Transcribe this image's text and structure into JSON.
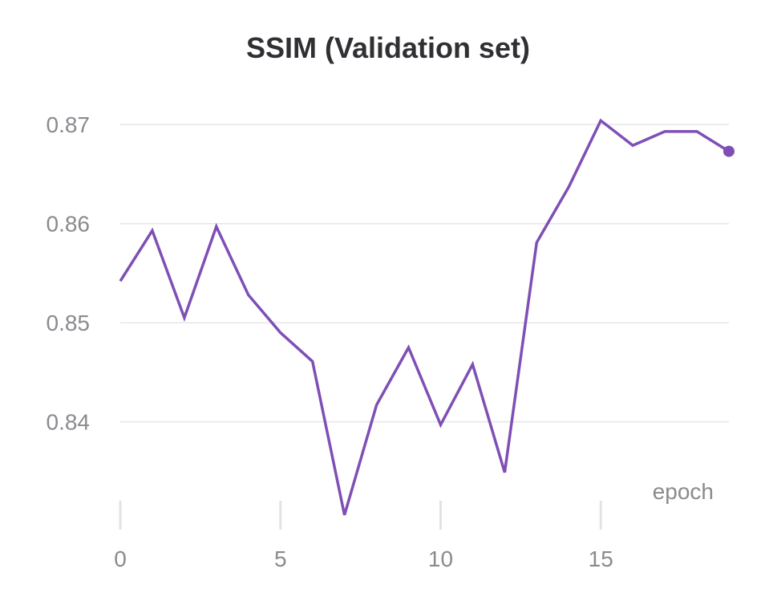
{
  "chart_data": {
    "type": "line",
    "title": "SSIM (Validation set)",
    "xlabel": "epoch",
    "ylabel": "",
    "xlim": [
      0,
      19
    ],
    "ylim": [
      0.8305,
      0.8735
    ],
    "xticks": [
      0,
      5,
      10,
      15
    ],
    "xtick_labels": [
      "0",
      "5",
      "10",
      "15"
    ],
    "yticks": [
      0.84,
      0.85,
      0.86,
      0.87
    ],
    "ytick_labels": [
      "0.84",
      "0.85",
      "0.86",
      "0.87"
    ],
    "grid": "horizontal",
    "series": [
      {
        "color": "#7e4fb5",
        "x": [
          0,
          1,
          2,
          3,
          4,
          5,
          6,
          7,
          8,
          9,
          10,
          11,
          12,
          13,
          14,
          15,
          16,
          17,
          18,
          19
        ],
        "y": [
          0.8542,
          0.8593,
          0.8505,
          0.8597,
          0.8528,
          0.849,
          0.8461,
          0.8306,
          0.8417,
          0.8475,
          0.8397,
          0.8458,
          0.8349,
          0.8581,
          0.8637,
          0.8704,
          0.8679,
          0.8693,
          0.8693,
          0.8673
        ]
      }
    ]
  }
}
